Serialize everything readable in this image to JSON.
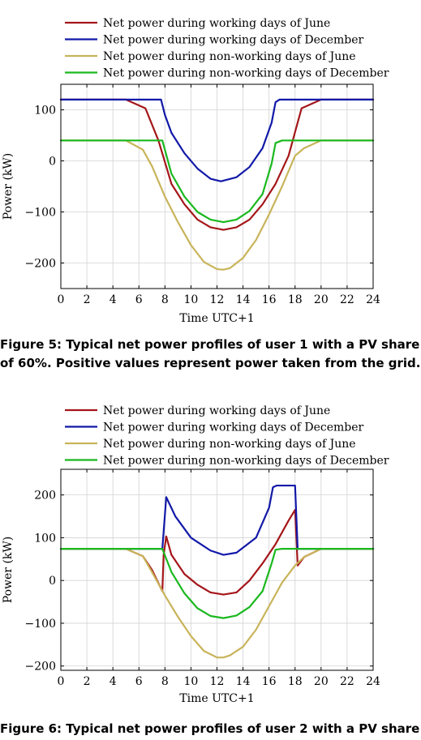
{
  "captions": {
    "fig5_line1": "Figure 5: Typical net power profiles of user 1 with a PV share",
    "fig5_line2": "of 60%. Positive values represent power taken from the grid.",
    "fig6_line1": "Figure 6: Typical net power profiles of user 2 with a PV share"
  },
  "chart_data": [
    {
      "type": "line",
      "xlabel": "Time UTC+1",
      "ylabel": "Power (kW)",
      "xlim": [
        0,
        24
      ],
      "ylim": [
        -250,
        150
      ],
      "xticks": [
        0,
        2,
        4,
        6,
        8,
        10,
        12,
        14,
        16,
        18,
        20,
        22,
        24
      ],
      "yticks": [
        -200,
        -100,
        0,
        100
      ],
      "grid": true,
      "legend_position": "top",
      "series": [
        {
          "name": "Net power during working days of June",
          "color": "#a4161a",
          "x": [
            0,
            5,
            6.5,
            7.5,
            8.5,
            9.5,
            10.5,
            11.5,
            12.5,
            13.5,
            14.5,
            15.5,
            16.5,
            17.5,
            18.5,
            20,
            24
          ],
          "y": [
            120,
            120,
            103,
            40,
            -45,
            -85,
            -115,
            -130,
            -135,
            -130,
            -115,
            -85,
            -45,
            10,
            103,
            120,
            120
          ]
        },
        {
          "name": "Net power during working days of December",
          "color": "#1219a8",
          "x": [
            0,
            7.7,
            8.0,
            8.5,
            9.5,
            10.5,
            11.5,
            12.3,
            13.5,
            14.5,
            15.5,
            16.2,
            16.5,
            16.8,
            24
          ],
          "y": [
            120,
            120,
            90,
            55,
            15,
            -15,
            -35,
            -40,
            -32,
            -12,
            25,
            75,
            115,
            120,
            120
          ]
        },
        {
          "name": "Net power during non-working days of June",
          "color": "#c8b45a",
          "x": [
            0,
            5,
            6.3,
            7,
            8,
            9,
            10,
            11,
            12,
            12.5,
            13,
            14,
            15,
            16,
            17,
            18,
            18.7,
            20,
            24
          ],
          "y": [
            40,
            40,
            22,
            -10,
            -70,
            -120,
            -165,
            -198,
            -212,
            -213,
            -210,
            -190,
            -155,
            -105,
            -50,
            10,
            25,
            40,
            40
          ]
        },
        {
          "name": "Net power during non-working days of December",
          "color": "#1ab81e",
          "x": [
            0,
            7.8,
            8.5,
            9.5,
            10.5,
            11.5,
            12.5,
            13.5,
            14.5,
            15.5,
            16.2,
            16.5,
            17,
            24
          ],
          "y": [
            40,
            40,
            -25,
            -70,
            -100,
            -115,
            -120,
            -115,
            -98,
            -65,
            -5,
            35,
            40,
            40
          ]
        }
      ]
    },
    {
      "type": "line",
      "xlabel": "Time UTC+1",
      "ylabel": "Power (kW)",
      "xlim": [
        0,
        24
      ],
      "ylim": [
        -210,
        260
      ],
      "xticks": [
        0,
        2,
        4,
        6,
        8,
        10,
        12,
        14,
        16,
        18,
        20,
        22,
        24
      ],
      "yticks": [
        -200,
        -100,
        0,
        100,
        200
      ],
      "grid": true,
      "legend_position": "top",
      "series": [
        {
          "name": "Net power during working days of June",
          "color": "#a4161a",
          "x": [
            0,
            5,
            6.3,
            7,
            7.8,
            7.9,
            8.1,
            8.5,
            9.5,
            10.5,
            11.5,
            12.5,
            13.5,
            14.5,
            15.5,
            16.5,
            17.5,
            18.0,
            18.2,
            18.7,
            20,
            24
          ],
          "y": [
            74,
            74,
            57,
            25,
            -25,
            60,
            103,
            60,
            15,
            -10,
            -28,
            -33,
            -28,
            0,
            40,
            85,
            140,
            165,
            35,
            55,
            74,
            74
          ]
        },
        {
          "name": "Net power during working days of December",
          "color": "#1219a8",
          "x": [
            0,
            7.8,
            8.1,
            8.8,
            10,
            11.5,
            12.5,
            13.5,
            15,
            16,
            16.3,
            16.6,
            18.0,
            18.2,
            24
          ],
          "y": [
            74,
            74,
            195,
            150,
            100,
            70,
            60,
            65,
            100,
            170,
            218,
            222,
            222,
            74,
            74
          ]
        },
        {
          "name": "Net power during non-working days of June",
          "color": "#c8b45a",
          "x": [
            0,
            5,
            6.3,
            7,
            8,
            9,
            10,
            11,
            12,
            12.5,
            13,
            14,
            15,
            16,
            17,
            18,
            18.7,
            20,
            24
          ],
          "y": [
            74,
            74,
            57,
            20,
            -35,
            -85,
            -130,
            -165,
            -180,
            -180,
            -175,
            -155,
            -115,
            -60,
            -5,
            35,
            55,
            74,
            74
          ]
        },
        {
          "name": "Net power during non-working days of December",
          "color": "#1ab81e",
          "x": [
            0,
            7.8,
            8.5,
            9.5,
            10.5,
            11.5,
            12.5,
            13.5,
            14.5,
            15.5,
            16.2,
            16.5,
            17,
            24
          ],
          "y": [
            74,
            74,
            20,
            -30,
            -65,
            -83,
            -88,
            -82,
            -62,
            -25,
            40,
            72,
            74,
            74
          ]
        }
      ]
    }
  ]
}
